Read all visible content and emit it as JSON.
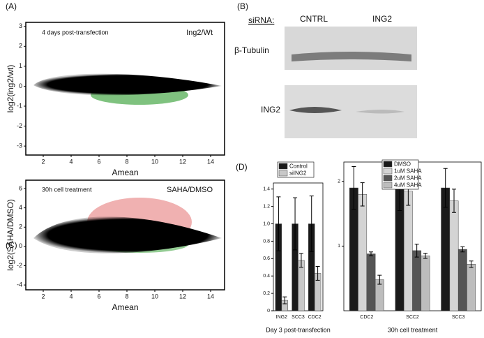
{
  "chart_data": [
    {
      "type": "scatter",
      "label": "(A)",
      "xlabel": "Amean",
      "ylabel": "log2(ing2/wt)",
      "annotations": [
        "4 days post-transfection",
        "Ing2/Wt"
      ],
      "xlim": [
        0.75,
        15
      ],
      "xticks": [
        2,
        4,
        6,
        8,
        10,
        12,
        14
      ],
      "ylim": [
        -3.45,
        3.2
      ],
      "yticks": [
        -3,
        -2,
        -1,
        0,
        1,
        2,
        3
      ]
    },
    {
      "type": "scatter",
      "label": "(C)",
      "xlabel": "Amean",
      "ylabel": "log2(SAHA/DMSO)",
      "annotations": [
        "30h cell treatment",
        "SAHA/DMSO"
      ],
      "xlim": [
        0.75,
        15
      ],
      "xticks": [
        2,
        4,
        6,
        8,
        10,
        12,
        14
      ],
      "ylim": [
        -4.5,
        6.87
      ],
      "yticks": [
        -4,
        -2,
        0,
        2,
        4,
        6
      ]
    },
    {
      "type": "bar",
      "label": "(D)",
      "xlabel": "Day 3 post-transfection",
      "categories": [
        "ING2",
        "SCC3",
        "CDC2"
      ],
      "series": [
        {
          "name": "Control",
          "color": "#1a1a1a",
          "values": [
            1.0,
            1.0,
            1.0
          ],
          "errors": [
            0.31,
            0.3,
            0.32
          ]
        },
        {
          "name": "siING2",
          "color": "#c8c8c8",
          "values": [
            0.12,
            0.58,
            0.43
          ],
          "errors": [
            0.04,
            0.08,
            0.08
          ]
        }
      ],
      "ylim": [
        0,
        1.47
      ],
      "yticks": [
        0,
        0.2,
        0.4,
        0.6,
        0.8,
        {
          "value": 1,
          "label": "1.0"
        },
        1.2,
        1.4
      ]
    },
    {
      "type": "bar",
      "xlabel": "30h cell treatment",
      "categories": [
        "CDC2",
        "SCC2",
        "SCC3"
      ],
      "series": [
        {
          "name": "DMSO",
          "color": "#1a1a1a",
          "values": [
            1.9,
            1.88,
            1.9
          ],
          "errors": [
            0.33,
            0.33,
            0.3
          ]
        },
        {
          "name": "1uM SAHA",
          "color": "#d4d4d4",
          "values": [
            1.8,
            1.85,
            1.7
          ],
          "errors": [
            0.18,
            0.22,
            0.18
          ]
        },
        {
          "name": "2uM SAHA",
          "color": "#555555",
          "values": [
            0.88,
            0.93,
            0.95
          ],
          "errors": [
            0.03,
            0.1,
            0.04
          ]
        },
        {
          "name": "4uM SAHA",
          "color": "#bdbdbd",
          "values": [
            0.48,
            0.85,
            0.72
          ],
          "errors": [
            0.07,
            0.04,
            0.05
          ]
        }
      ],
      "ylim": [
        0,
        2.3
      ],
      "yticks": [
        1,
        2
      ]
    }
  ],
  "blot": {
    "label": "(B)",
    "heading": "siRNA:",
    "lanes": [
      "CNTRL",
      "ING2"
    ],
    "bands": [
      "β-Tubulin",
      "ING2"
    ]
  }
}
